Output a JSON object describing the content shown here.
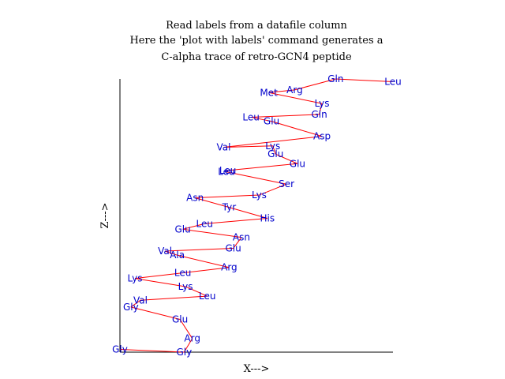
{
  "chart_data": {
    "type": "line",
    "title_lines": [
      "Read labels from a datafile column",
      "Here the 'plot with labels' command generates a",
      "C-alpha trace of retro-GCN4 peptide"
    ],
    "xlabel": "X--->",
    "ylabel": "Z--->",
    "xlim": [
      0,
      100
    ],
    "ylim": [
      0,
      100
    ],
    "line_color": "#ff0000",
    "label_color": "#0000cc",
    "points": [
      {
        "x": 0.0,
        "y": 1.0,
        "label": "Gly"
      },
      {
        "x": 23.5,
        "y": 0.0,
        "label": "Gly"
      },
      {
        "x": 26.5,
        "y": 5.0,
        "label": "Arg"
      },
      {
        "x": 22.0,
        "y": 12.0,
        "label": "Glu"
      },
      {
        "x": 4.0,
        "y": 16.5,
        "label": "Gly"
      },
      {
        "x": 7.5,
        "y": 19.0,
        "label": "Val"
      },
      {
        "x": 32.0,
        "y": 20.5,
        "label": "Leu"
      },
      {
        "x": 24.0,
        "y": 24.0,
        "label": "Lys"
      },
      {
        "x": 5.5,
        "y": 27.0,
        "label": "Lys"
      },
      {
        "x": 23.0,
        "y": 29.0,
        "label": "Leu"
      },
      {
        "x": 40.0,
        "y": 31.0,
        "label": "Arg"
      },
      {
        "x": 21.0,
        "y": 35.5,
        "label": "Ala"
      },
      {
        "x": 16.5,
        "y": 37.0,
        "label": "Val"
      },
      {
        "x": 41.5,
        "y": 38.0,
        "label": "Glu"
      },
      {
        "x": 44.5,
        "y": 42.0,
        "label": "Asn"
      },
      {
        "x": 23.0,
        "y": 45.0,
        "label": "Glu"
      },
      {
        "x": 31.0,
        "y": 47.0,
        "label": "Leu"
      },
      {
        "x": 54.0,
        "y": 49.0,
        "label": "His"
      },
      {
        "x": 40.0,
        "y": 53.0,
        "label": "Tyr"
      },
      {
        "x": 27.5,
        "y": 56.5,
        "label": "Asn"
      },
      {
        "x": 51.0,
        "y": 57.5,
        "label": "Lys"
      },
      {
        "x": 61.0,
        "y": 61.5,
        "label": "Ser"
      },
      {
        "x": 39.0,
        "y": 66.0,
        "label": "Leu"
      },
      {
        "x": 39.5,
        "y": 66.5,
        "label": "Leu"
      },
      {
        "x": 65.0,
        "y": 69.0,
        "label": "Glu"
      },
      {
        "x": 57.0,
        "y": 72.5,
        "label": "Glu"
      },
      {
        "x": 56.0,
        "y": 75.5,
        "label": "Lys"
      },
      {
        "x": 38.0,
        "y": 75.0,
        "label": "Val"
      },
      {
        "x": 74.0,
        "y": 79.0,
        "label": "Asp"
      },
      {
        "x": 55.5,
        "y": 84.5,
        "label": "Glu"
      },
      {
        "x": 48.0,
        "y": 86.0,
        "label": "Leu"
      },
      {
        "x": 73.0,
        "y": 87.0,
        "label": "Gln"
      },
      {
        "x": 74.0,
        "y": 91.0,
        "label": "Lys"
      },
      {
        "x": 54.5,
        "y": 95.0,
        "label": "Met"
      },
      {
        "x": 64.0,
        "y": 96.0,
        "label": "Arg"
      },
      {
        "x": 79.0,
        "y": 100.0,
        "label": "Gln"
      },
      {
        "x": 100.0,
        "y": 99.0,
        "label": "Leu"
      }
    ]
  }
}
